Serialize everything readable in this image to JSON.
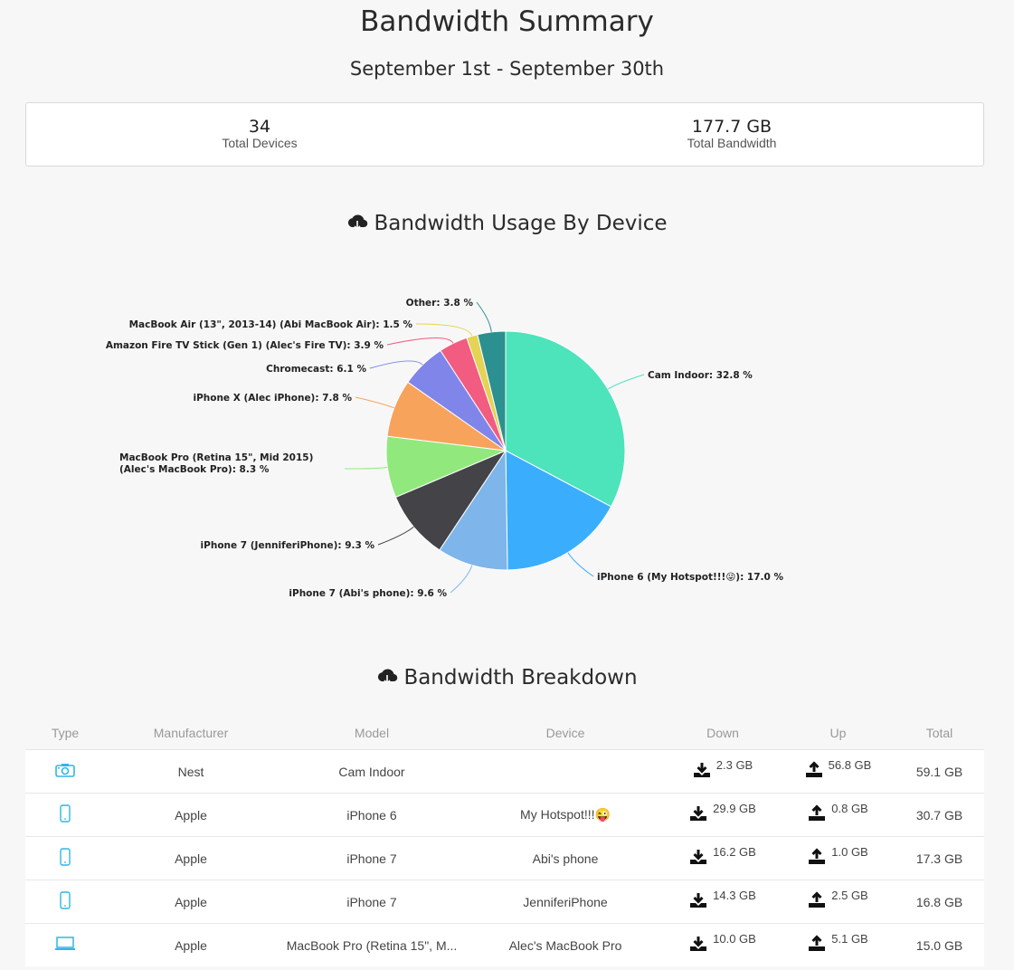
{
  "header": {
    "title": "Bandwidth Summary",
    "date_range": "September 1st - September 30th"
  },
  "summary": {
    "devices_value": "34",
    "devices_label": "Total Devices",
    "bandwidth_value": "177.7 GB",
    "bandwidth_label": "Total Bandwidth"
  },
  "usage_section_title": "Bandwidth Usage By Device",
  "breakdown_section_title": "Bandwidth Breakdown",
  "chart_data": {
    "type": "pie",
    "slices": [
      {
        "label": "Cam Indoor",
        "value": 32.8,
        "display": "Cam Indoor: 32.8 %",
        "color": "#4de3bb"
      },
      {
        "label": "iPhone 6 (My Hotspot!!!😜)",
        "value": 17.0,
        "display": "iPhone 6 (My Hotspot!!!😜): 17.0 %",
        "color": "#3aaefc"
      },
      {
        "label": "iPhone 7 (Abi's phone)",
        "value": 9.6,
        "display": "iPhone 7 (Abi's phone): 9.6 %",
        "color": "#7eb5ea"
      },
      {
        "label": "iPhone 7 (JenniferiPhone)",
        "value": 9.3,
        "display": "iPhone 7 (JenniferiPhone): 9.3 %",
        "color": "#434348"
      },
      {
        "label": "MacBook Pro (Retina 15\", Mid 2015) (Alec's MacBook Pro)",
        "value": 8.3,
        "display": [
          "MacBook Pro (Retina 15\", Mid 2015)",
          "(Alec's MacBook Pro): 8.3 %"
        ],
        "color": "#91e97d"
      },
      {
        "label": "iPhone X (Alec iPhone)",
        "value": 7.8,
        "display": "iPhone X (Alec iPhone): 7.8 %",
        "color": "#f7a35c"
      },
      {
        "label": "Chromecast",
        "value": 6.1,
        "display": "Chromecast: 6.1 %",
        "color": "#8085e9"
      },
      {
        "label": "Amazon Fire TV Stick (Gen 1) (Alec's Fire TV)",
        "value": 3.9,
        "display": "Amazon Fire TV Stick (Gen 1) (Alec's Fire TV): 3.9 %",
        "color": "#f15c80"
      },
      {
        "label": "MacBook Air (13\", 2013-14) (Abi MacBook Air)",
        "value": 1.5,
        "display": "MacBook Air (13\", 2013-14) (Abi MacBook Air): 1.5 %",
        "color": "#e4d354"
      },
      {
        "label": "Other",
        "value": 3.8,
        "display": "Other: 3.8 %",
        "color": "#2b908f"
      }
    ]
  },
  "table": {
    "columns": [
      "Type",
      "Manufacturer",
      "Model",
      "Device",
      "Down",
      "Up",
      "Total"
    ],
    "rows": [
      {
        "type": "camera-icon",
        "manufacturer": "Nest",
        "model": "Cam Indoor",
        "device": "",
        "down": "2.3 GB",
        "up": "56.8 GB",
        "total": "59.1 GB"
      },
      {
        "type": "phone-icon",
        "manufacturer": "Apple",
        "model": "iPhone 6",
        "device": "My Hotspot!!!😜",
        "down": "29.9 GB",
        "up": "0.8 GB",
        "total": "30.7 GB"
      },
      {
        "type": "phone-icon",
        "manufacturer": "Apple",
        "model": "iPhone 7",
        "device": "Abi's phone",
        "down": "16.2 GB",
        "up": "1.0 GB",
        "total": "17.3 GB"
      },
      {
        "type": "phone-icon",
        "manufacturer": "Apple",
        "model": "iPhone 7",
        "device": "JenniferiPhone",
        "down": "14.3 GB",
        "up": "2.5 GB",
        "total": "16.8 GB"
      },
      {
        "type": "laptop-icon",
        "manufacturer": "Apple",
        "model": "MacBook Pro (Retina 15\", M...",
        "device": "Alec's MacBook Pro",
        "down": "10.0 GB",
        "up": "5.1 GB",
        "total": "15.0 GB"
      }
    ]
  },
  "colors": {
    "accent_icon": "#2fb6e8",
    "background": "#f7f7f7"
  }
}
